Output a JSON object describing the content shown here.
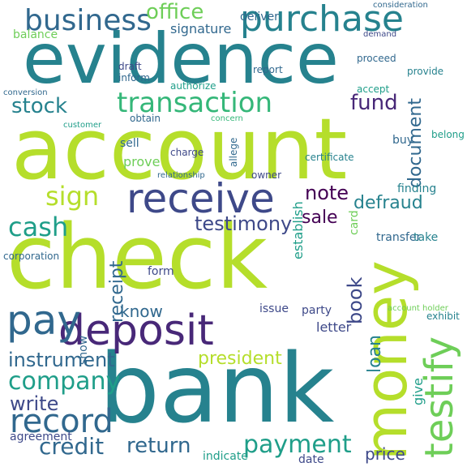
{
  "colors": {
    "lime": "#b5de2b",
    "green": "#6ece58",
    "lightgreen": "#35b779",
    "teal": "#1f9e89",
    "tealblue": "#26828e",
    "blue": "#31688e",
    "indigo": "#3e4989",
    "purple": "#482878",
    "darkpurple": "#440154"
  },
  "words": [
    "account",
    "check",
    "bank",
    "evidence",
    "money",
    "testify",
    "deposit",
    "receive",
    "purchase",
    "business",
    "transaction",
    "record",
    "pay",
    "office",
    "sign",
    "cash",
    "company",
    "credit",
    "write",
    "payment",
    "return",
    "fund",
    "stock",
    "testimony",
    "note",
    "sale",
    "document",
    "book",
    "loan",
    "receipt",
    "give",
    "establish",
    "card",
    "show",
    "instrument",
    "defraud",
    "know",
    "president",
    "balance",
    "transfer",
    "price",
    "deliver",
    "signature",
    "form",
    "issue",
    "party",
    "letter",
    "certificate",
    "indicate",
    "date",
    "agreement",
    "corporation",
    "customer",
    "finding",
    "take",
    "buy",
    "belong",
    "provide",
    "proceed",
    "accept",
    "exhibit",
    "concern",
    "obtain",
    "prove",
    "sell",
    "charge",
    "relationship",
    "allege",
    "owner",
    "report",
    "demand",
    "consideration",
    "conversion",
    "authorize",
    "draft",
    "inform",
    "account holder"
  ]
}
